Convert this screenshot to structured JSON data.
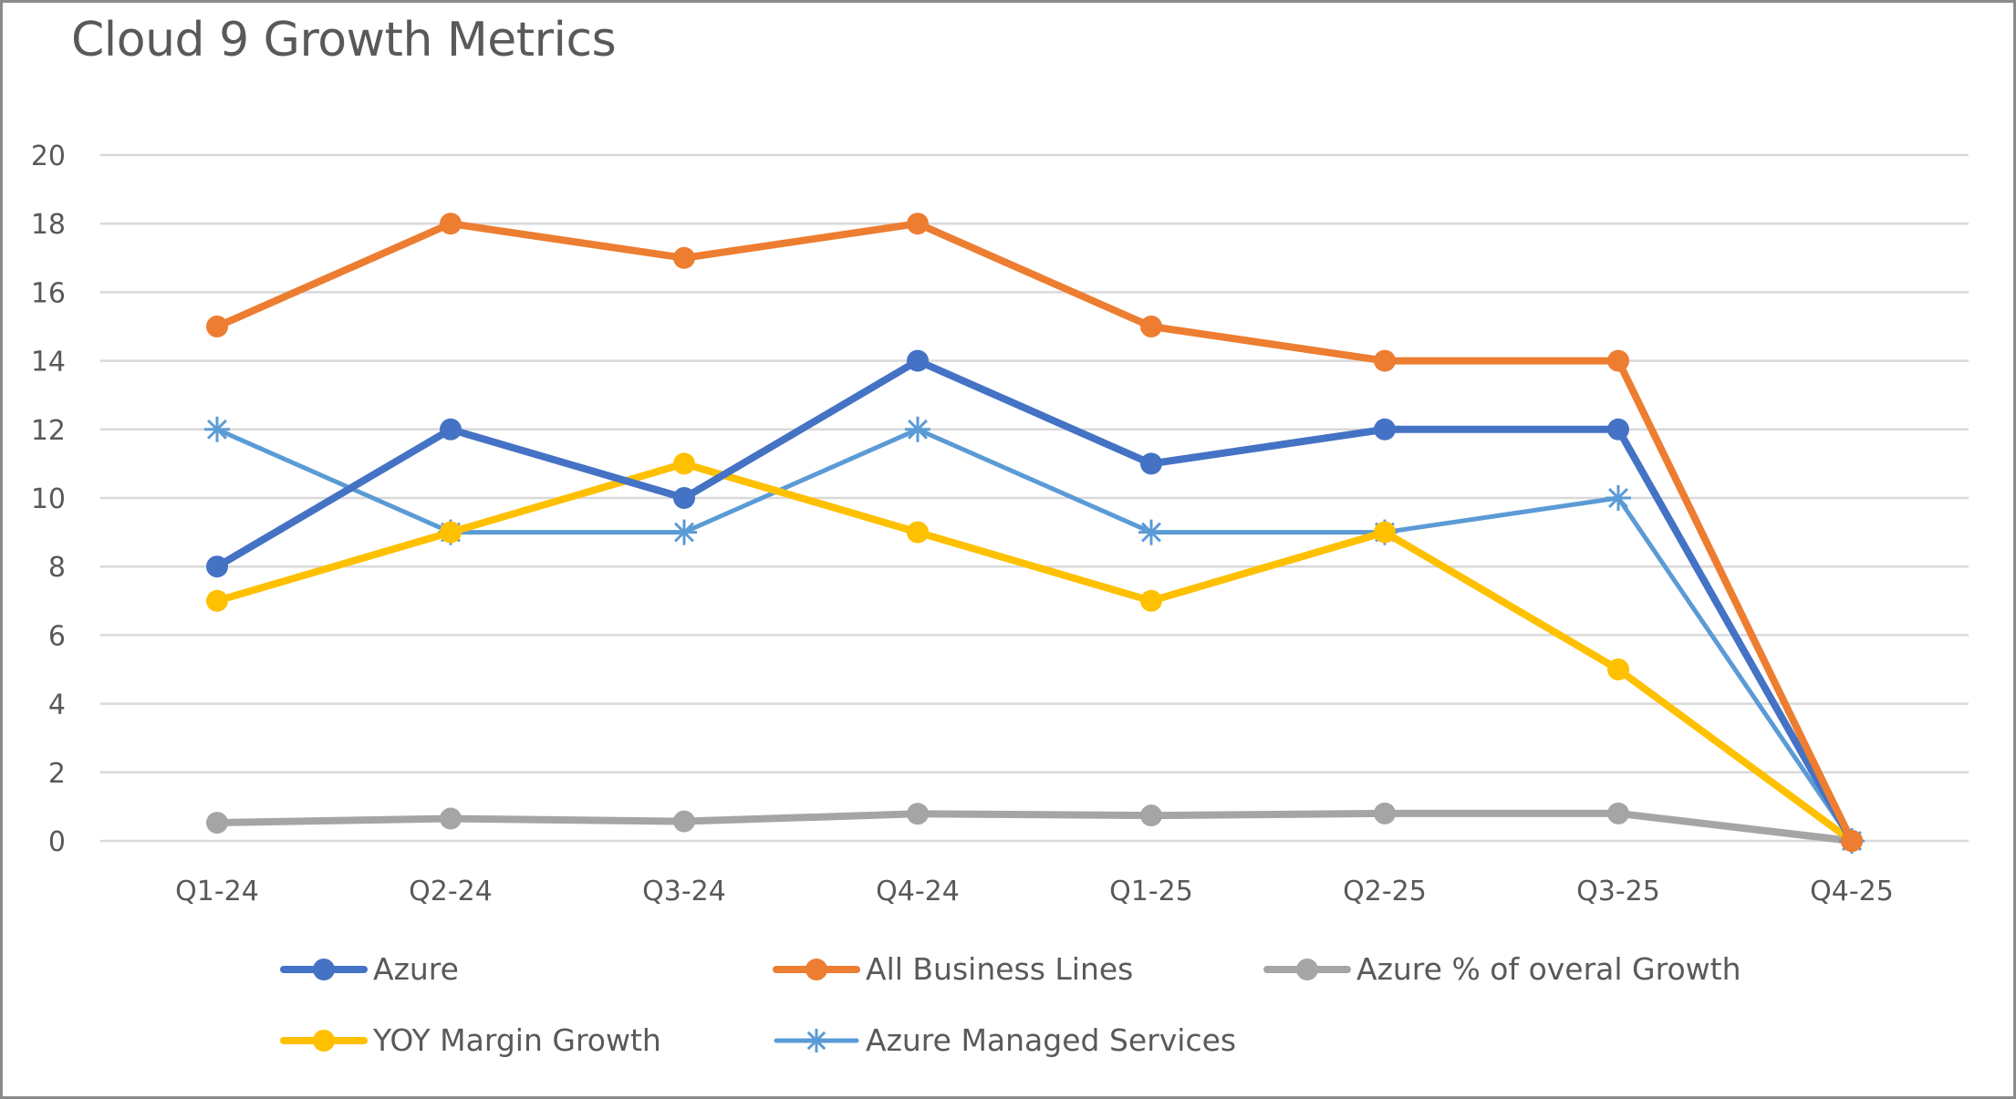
{
  "chart_data": {
    "type": "line",
    "title": "Cloud 9 Growth Metrics",
    "xlabel": "",
    "ylabel": "",
    "categories": [
      "Q1-24",
      "Q2-24",
      "Q3-24",
      "Q4-24",
      "Q1-25",
      "Q2-25",
      "Q3-25",
      "Q4-25"
    ],
    "ylim": [
      0,
      20
    ],
    "yticks": [
      0,
      2,
      4,
      6,
      8,
      10,
      12,
      14,
      16,
      18,
      20
    ],
    "grid": true,
    "legend_position": "bottom",
    "series": [
      {
        "name": "Azure",
        "color": "#4472C4",
        "marker": "circle",
        "values": [
          8,
          12,
          10,
          14,
          11,
          12,
          12,
          0
        ]
      },
      {
        "name": "All Business Lines",
        "color": "#ED7D31",
        "marker": "circle",
        "values": [
          15,
          18,
          17,
          18,
          15,
          14,
          14,
          0
        ]
      },
      {
        "name": "Azure % of overal Growth",
        "color": "#A5A5A5",
        "marker": "circle",
        "values": [
          0.53,
          0.65,
          0.57,
          0.79,
          0.74,
          0.8,
          0.8,
          0
        ]
      },
      {
        "name": "YOY Margin Growth",
        "color": "#FFC000",
        "marker": "circle",
        "values": [
          7,
          9,
          11,
          9,
          7,
          9,
          5,
          0
        ]
      },
      {
        "name": "Azure Managed Services",
        "color": "#5B9BD5",
        "marker": "star",
        "values": [
          12,
          9,
          9,
          12,
          9,
          9,
          10,
          0
        ]
      }
    ]
  }
}
